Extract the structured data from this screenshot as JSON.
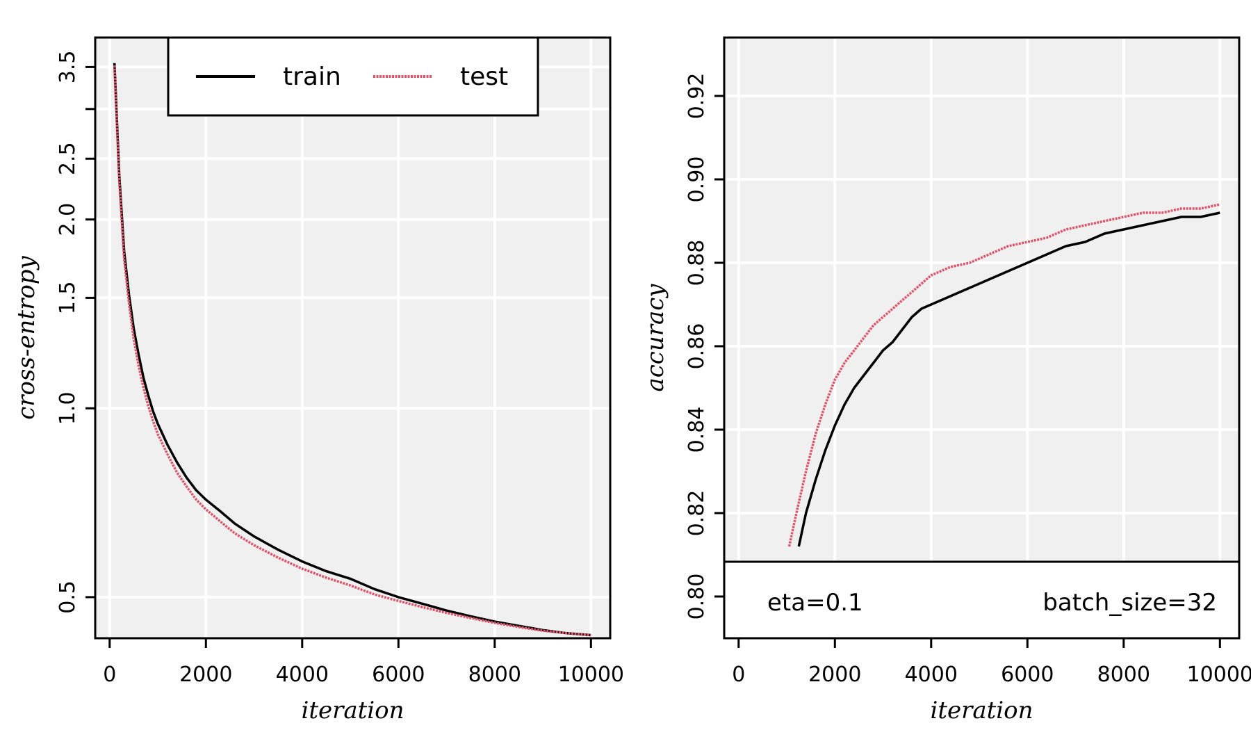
{
  "chart_data": [
    {
      "type": "line",
      "xlabel": "iteration",
      "ylabel": "cross-entropy",
      "yscale": "log",
      "xlim": [
        -300,
        10400
      ],
      "ylim": [
        0.43,
        3.9
      ],
      "xticks": [
        0,
        2000,
        4000,
        6000,
        8000,
        10000
      ],
      "xtick_labels": [
        "0",
        "2000",
        "4000",
        "6000",
        "8000",
        "10000"
      ],
      "yticks": [
        0.5,
        1.0,
        1.5,
        2.0,
        2.5,
        3.5
      ],
      "ytick_labels": [
        "0.5",
        "1.0",
        "1.5",
        "2.0",
        "2.5",
        "3.5"
      ],
      "minor_yticks": [
        3.0
      ],
      "grid": true,
      "legend": {
        "position": "top-center",
        "entries": [
          "train",
          "test"
        ]
      },
      "series": [
        {
          "name": "train",
          "color": "#000000",
          "style": "solid",
          "x": [
            100,
            200,
            300,
            400,
            500,
            600,
            700,
            800,
            900,
            1000,
            1200,
            1400,
            1600,
            1800,
            2000,
            2300,
            2600,
            3000,
            3500,
            4000,
            4500,
            5000,
            5500,
            6000,
            6500,
            7000,
            7500,
            8000,
            8500,
            9000,
            9500,
            10000
          ],
          "y": [
            3.55,
            2.35,
            1.78,
            1.52,
            1.34,
            1.22,
            1.12,
            1.05,
            0.99,
            0.945,
            0.875,
            0.82,
            0.775,
            0.74,
            0.715,
            0.685,
            0.655,
            0.625,
            0.595,
            0.57,
            0.55,
            0.535,
            0.515,
            0.5,
            0.488,
            0.476,
            0.466,
            0.457,
            0.45,
            0.443,
            0.438,
            0.435
          ]
        },
        {
          "name": "test",
          "color": "#DF536B",
          "style": "dotted",
          "x": [
            100,
            200,
            300,
            400,
            500,
            600,
            700,
            800,
            900,
            1000,
            1200,
            1400,
            1600,
            1800,
            2000,
            2300,
            2600,
            3000,
            3500,
            4000,
            4500,
            5000,
            5500,
            6000,
            6500,
            7000,
            7500,
            8000,
            8500,
            9000,
            9500,
            10000
          ],
          "y": [
            3.52,
            2.3,
            1.73,
            1.47,
            1.29,
            1.17,
            1.08,
            1.01,
            0.955,
            0.91,
            0.845,
            0.79,
            0.75,
            0.715,
            0.69,
            0.66,
            0.632,
            0.605,
            0.578,
            0.555,
            0.537,
            0.522,
            0.505,
            0.493,
            0.482,
            0.472,
            0.463,
            0.455,
            0.448,
            0.442,
            0.438,
            0.435
          ]
        }
      ]
    },
    {
      "type": "line",
      "xlabel": "iteration",
      "ylabel": "accuracy",
      "xlim": [
        -300,
        10400
      ],
      "ylim": [
        0.79,
        0.934
      ],
      "xticks": [
        0,
        2000,
        4000,
        6000,
        8000,
        10000
      ],
      "xtick_labels": [
        "0",
        "2000",
        "4000",
        "6000",
        "8000",
        "10000"
      ],
      "yticks": [
        0.8,
        0.82,
        0.84,
        0.86,
        0.88,
        0.9,
        0.92
      ],
      "ytick_labels": [
        "0.80",
        "0.82",
        "0.84",
        "0.86",
        "0.88",
        "0.90",
        "0.92"
      ],
      "grid": true,
      "annotations": [
        "eta=0.1",
        "batch_size=32"
      ],
      "series": [
        {
          "name": "train",
          "color": "#000000",
          "style": "solid",
          "x": [
            1250,
            1400,
            1600,
            1800,
            2000,
            2200,
            2400,
            2600,
            2800,
            3000,
            3200,
            3400,
            3600,
            3800,
            4000,
            4400,
            4800,
            5200,
            5600,
            6000,
            6400,
            6800,
            7200,
            7600,
            8000,
            8400,
            8800,
            9200,
            9600,
            10000
          ],
          "y": [
            0.812,
            0.82,
            0.828,
            0.835,
            0.841,
            0.846,
            0.85,
            0.853,
            0.856,
            0.859,
            0.861,
            0.864,
            0.867,
            0.869,
            0.87,
            0.872,
            0.874,
            0.876,
            0.878,
            0.88,
            0.882,
            0.884,
            0.885,
            0.887,
            0.888,
            0.889,
            0.89,
            0.891,
            0.891,
            0.892
          ]
        },
        {
          "name": "test",
          "color": "#DF536B",
          "style": "dotted",
          "x": [
            1050,
            1200,
            1400,
            1600,
            1800,
            2000,
            2200,
            2400,
            2600,
            2800,
            3000,
            3200,
            3400,
            3600,
            3800,
            4000,
            4400,
            4800,
            5200,
            5600,
            6000,
            6400,
            6800,
            7200,
            7600,
            8000,
            8400,
            8800,
            9200,
            9600,
            10000
          ],
          "y": [
            0.812,
            0.82,
            0.83,
            0.839,
            0.846,
            0.852,
            0.856,
            0.859,
            0.862,
            0.865,
            0.867,
            0.869,
            0.871,
            0.873,
            0.875,
            0.877,
            0.879,
            0.88,
            0.882,
            0.884,
            0.885,
            0.886,
            0.888,
            0.889,
            0.89,
            0.891,
            0.892,
            0.892,
            0.893,
            0.893,
            0.894
          ]
        }
      ]
    }
  ]
}
